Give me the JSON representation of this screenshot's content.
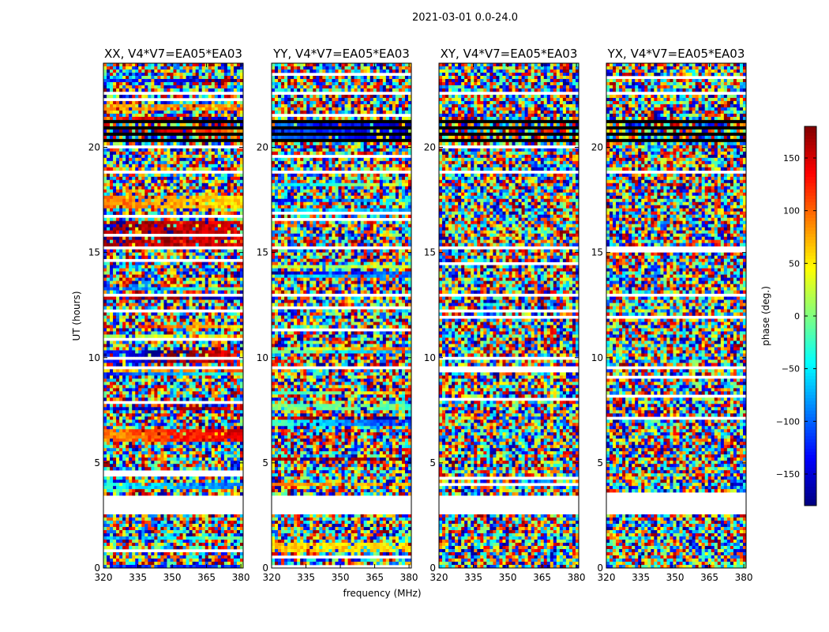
{
  "figure": {
    "title": "2021-03-01 0.0-24.0",
    "xlabel": "frequency (MHz)",
    "ylabel": "UT (hours)",
    "colorbar_label": "phase (deg.)"
  },
  "chart_data": {
    "type": "heatmap",
    "title": "2021-03-01 0.0-24.0",
    "xlabel": "frequency (MHz)",
    "ylabel": "UT (hours)",
    "xlim": [
      320,
      381
    ],
    "ylim": [
      0,
      24
    ],
    "x_ticks": [
      320,
      335,
      350,
      365,
      380
    ],
    "y_ticks": [
      0,
      5,
      10,
      15,
      20
    ],
    "colorbar": {
      "label": "phase (deg.)",
      "range": [
        -180,
        180
      ],
      "ticks": [
        150,
        100,
        50,
        0,
        -50,
        -100,
        -150
      ],
      "colormap": "jet"
    },
    "panels": [
      {
        "title": "XX, V4*V7=EA05*EA03",
        "kind": "coherent"
      },
      {
        "title": "YY, V4*V7=EA05*EA03",
        "kind": "coherent"
      },
      {
        "title": "XY, V4*V7=EA05*EA03",
        "kind": "noise"
      },
      {
        "title": "YX, V4*V7=EA05*EA03",
        "kind": "noise"
      }
    ],
    "blank_intervals_hours": [
      [
        2.55,
        3.45
      ],
      [
        9.45,
        9.55
      ],
      [
        12.95,
        13.05
      ],
      [
        15.1,
        15.25
      ],
      [
        17.5,
        17.6
      ],
      [
        18.75,
        18.85
      ],
      [
        22.5,
        22.6
      ],
      [
        23.35,
        23.45
      ]
    ],
    "flagged_black_intervals_hours": [
      [
        20.2,
        20.35
      ],
      [
        20.55,
        20.7
      ],
      [
        20.85,
        21.0
      ],
      [
        21.15,
        21.25
      ],
      [
        3.85,
        3.95
      ],
      [
        4.05,
        4.1
      ]
    ],
    "colors": {
      "jet_dark_blue": "#00007f",
      "jet_cyan": "#00ffff",
      "jet_yellow": "#ffff00",
      "jet_dark_red": "#7f0000"
    }
  }
}
